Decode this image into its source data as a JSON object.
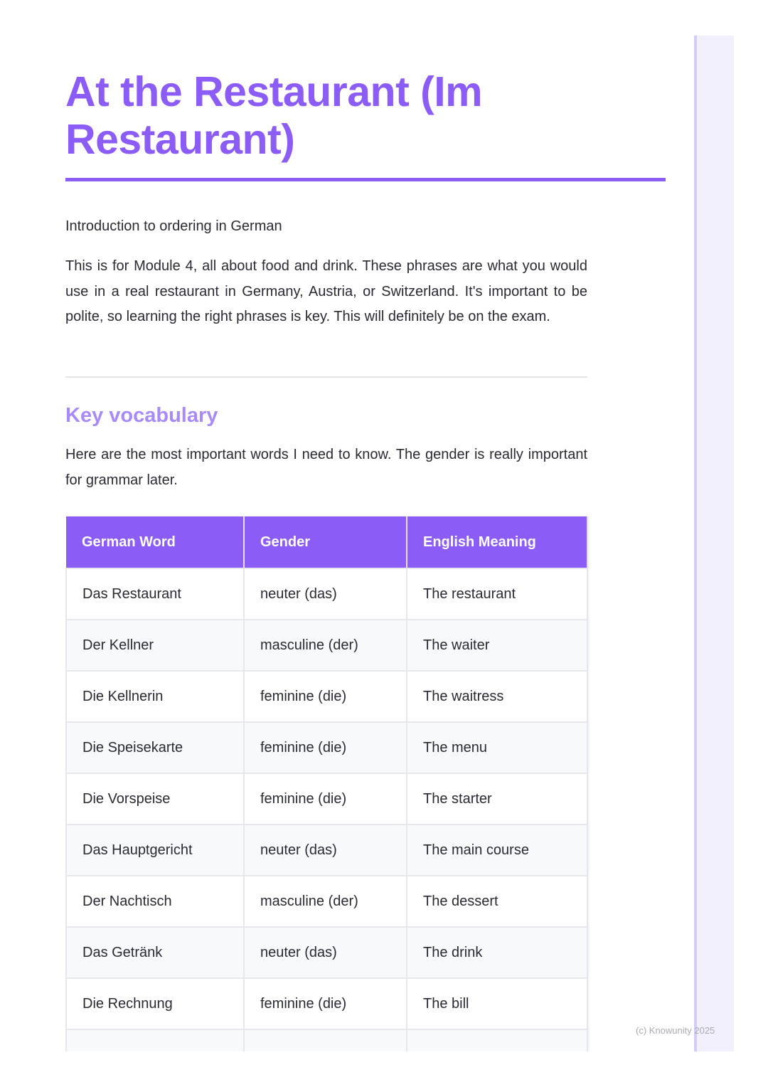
{
  "title": "At the Restaurant (Im Restaurant)",
  "intro": "Introduction to ordering in German",
  "paragraph": "This is for Module 4, all about food and drink. These phrases are what you would use in a real restaurant in Germany, Austria, or Switzerland. It's important to be polite, so learning the right phrases is key. This will definitely be on the exam.",
  "section": {
    "heading": "Key vocabulary",
    "text": "Here are the most important words I need to know. The gender is really important for grammar later."
  },
  "table": {
    "headers": [
      "German Word",
      "Gender",
      "English Meaning"
    ],
    "rows": [
      [
        "Das Restaurant",
        "neuter (das)",
        "The restaurant"
      ],
      [
        "Der Kellner",
        "masculine (der)",
        "The waiter"
      ],
      [
        "Die Kellnerin",
        "feminine (die)",
        "The waitress"
      ],
      [
        "Die Speisekarte",
        "feminine (die)",
        "The menu"
      ],
      [
        "Die Vorspeise",
        "feminine (die)",
        "The starter"
      ],
      [
        "Das Hauptgericht",
        "neuter (das)",
        "The main course"
      ],
      [
        "Der Nachtisch",
        "masculine (der)",
        "The dessert"
      ],
      [
        "Das Getränk",
        "neuter (das)",
        "The drink"
      ],
      [
        "Die Rechnung",
        "feminine (die)",
        "The bill"
      ]
    ]
  },
  "footer": "(c) Knowunity 2025",
  "colors": {
    "accent": "#8b5cf6",
    "heading2": "#a78bfa",
    "sidebar": "#f3f0fe"
  }
}
